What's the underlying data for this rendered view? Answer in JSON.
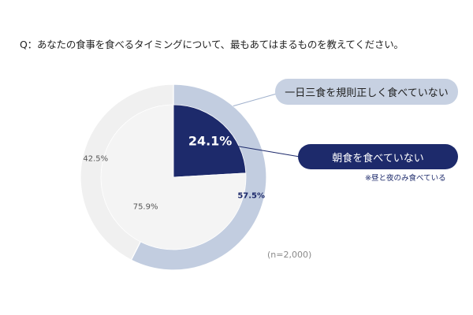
{
  "question": "Q：あなたの食事を食べるタイミングについて、最もあてはまるものを教えてください。",
  "chart_data": [
    {
      "type": "pie",
      "ring": "outer",
      "slices": [
        {
          "label": "一日三食を規則正しく食べていない",
          "value": 57.5,
          "label_text": "57.5%",
          "color": "#c2cde0"
        },
        {
          "label": "",
          "value": 42.5,
          "label_text": "42.5%",
          "color": "#f0f0f0"
        }
      ]
    },
    {
      "type": "pie",
      "ring": "inner",
      "slices": [
        {
          "label": "朝食を食べていない",
          "value": 24.1,
          "label_text": "24.1%",
          "color": "#1d2a6b"
        },
        {
          "label": "",
          "value": 75.9,
          "label_text": "75.9%",
          "color": "#f4f4f4"
        }
      ]
    }
  ],
  "callouts": {
    "irregular": "一日三食を規則正しく食べていない",
    "skip_breakfast": "朝食を食べていない",
    "skip_breakfast_note": "※昼と夜のみ食べている"
  },
  "sample_size": "(n=2,000)"
}
